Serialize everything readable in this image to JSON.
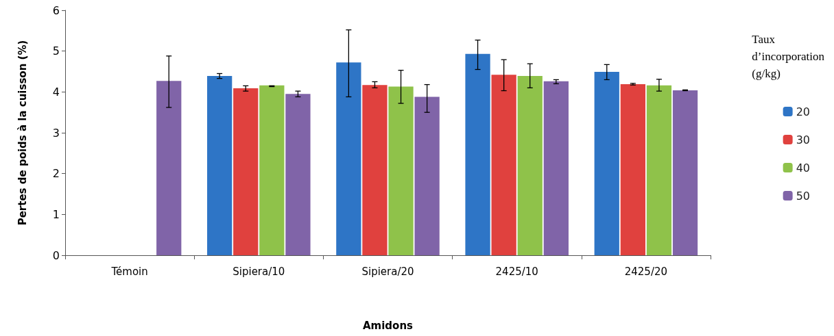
{
  "chart_data": {
    "type": "bar",
    "xlabel": "Amidons",
    "ylabel": "Pertes de poids à la cuisson (%)",
    "legend_title": "Taux d’incorporation (g/kg)",
    "legend": "right",
    "grid": false,
    "categories": [
      "Témoin",
      "Sipiera/10",
      "Sipiera/20",
      "2425/10",
      "2425/20"
    ],
    "ylim": [
      0,
      6
    ],
    "yticks": [
      0,
      1,
      2,
      3,
      4,
      5,
      6
    ],
    "series": [
      {
        "name": "20",
        "color": "#2e75c6",
        "values": [
          null,
          4.39,
          4.72,
          4.93,
          4.49
        ],
        "errors": [
          null,
          [
            4.33,
            4.45
          ],
          [
            3.88,
            5.52
          ],
          [
            4.55,
            5.27
          ],
          [
            4.3,
            4.67
          ]
        ]
      },
      {
        "name": "30",
        "color": "#e0413e",
        "values": [
          null,
          4.09,
          4.17,
          4.42,
          4.19
        ],
        "errors": [
          null,
          [
            4.02,
            4.15
          ],
          [
            4.1,
            4.25
          ],
          [
            4.03,
            4.79
          ],
          [
            4.17,
            4.21
          ]
        ]
      },
      {
        "name": "40",
        "color": "#8fc24a",
        "values": [
          null,
          4.16,
          4.13,
          4.39,
          4.16
        ],
        "errors": [
          null,
          [
            4.13,
            4.15
          ],
          [
            3.72,
            4.53
          ],
          [
            4.1,
            4.69
          ],
          [
            4.02,
            4.31
          ]
        ]
      },
      {
        "name": "50",
        "color": "#8064a8",
        "values": [
          4.27,
          3.95,
          3.88,
          4.26,
          4.04
        ],
        "errors": [
          [
            3.62,
            4.88
          ],
          [
            3.88,
            4.02
          ],
          [
            3.5,
            4.18
          ],
          [
            4.2,
            4.3
          ],
          [
            4.03,
            4.05
          ]
        ]
      }
    ]
  }
}
